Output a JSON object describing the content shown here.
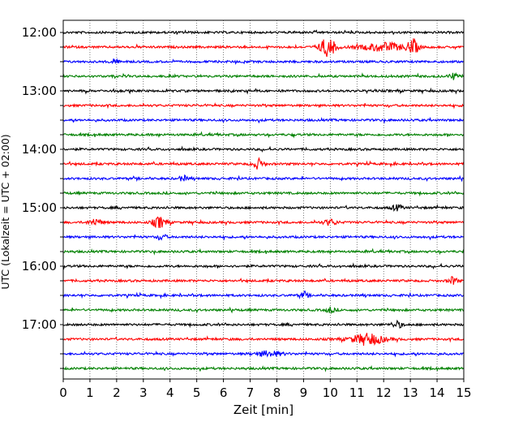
{
  "chart_data": {
    "type": "line",
    "subtype": "helicorder-seismogram",
    "title": "",
    "xlabel": "Zeit  [min]",
    "ylabel": "UTC (Lokalzeit = UTC + 02:00)",
    "xlim": [
      0,
      15
    ],
    "x_ticks": [
      "0",
      "1",
      "2",
      "3",
      "4",
      "5",
      "6",
      "7",
      "8",
      "9",
      "10",
      "11",
      "12",
      "13",
      "14",
      "15"
    ],
    "y_tick_labels": [
      "12:00",
      "13:00",
      "14:00",
      "15:00",
      "16:00",
      "17:00"
    ],
    "grid": "vertical dotted at each minute",
    "trace_interval_minutes": 15,
    "trace_color_cycle": [
      "#000000",
      "#ff0000",
      "#0000ff",
      "#008000"
    ],
    "traces": [
      {
        "start": "12:00",
        "bursts": []
      },
      {
        "start": "12:15",
        "bursts": [
          {
            "x": 9.9,
            "amp": 1.0,
            "dur": 0.6
          },
          {
            "x": 12.0,
            "amp": 0.45,
            "dur": 1.6
          },
          {
            "x": 13.1,
            "amp": 0.8,
            "dur": 0.4
          }
        ]
      },
      {
        "start": "12:30",
        "bursts": [
          {
            "x": 1.9,
            "amp": 0.3,
            "dur": 0.3
          }
        ]
      },
      {
        "start": "12:45",
        "bursts": [
          {
            "x": 14.6,
            "amp": 0.35,
            "dur": 0.3
          }
        ]
      },
      {
        "start": "13:00",
        "bursts": []
      },
      {
        "start": "13:15",
        "bursts": []
      },
      {
        "start": "13:30",
        "bursts": []
      },
      {
        "start": "13:45",
        "bursts": []
      },
      {
        "start": "14:00",
        "bursts": []
      },
      {
        "start": "14:15",
        "bursts": [
          {
            "x": 7.3,
            "amp": 0.55,
            "dur": 0.4
          }
        ]
      },
      {
        "start": "14:30",
        "bursts": [
          {
            "x": 4.5,
            "amp": 0.3,
            "dur": 0.3
          }
        ]
      },
      {
        "start": "14:45",
        "bursts": []
      },
      {
        "start": "15:00",
        "bursts": [
          {
            "x": 12.5,
            "amp": 0.3,
            "dur": 0.4
          }
        ]
      },
      {
        "start": "15:15",
        "bursts": [
          {
            "x": 1.2,
            "amp": 0.35,
            "dur": 0.5
          },
          {
            "x": 3.6,
            "amp": 0.6,
            "dur": 0.5
          },
          {
            "x": 10.0,
            "amp": 0.3,
            "dur": 0.5
          }
        ]
      },
      {
        "start": "15:30",
        "bursts": [
          {
            "x": 3.7,
            "amp": 0.35,
            "dur": 0.3
          }
        ]
      },
      {
        "start": "15:45",
        "bursts": []
      },
      {
        "start": "16:00",
        "bursts": []
      },
      {
        "start": "16:15",
        "bursts": [
          {
            "x": 14.6,
            "amp": 0.45,
            "dur": 0.3
          }
        ]
      },
      {
        "start": "16:30",
        "bursts": [
          {
            "x": 9.0,
            "amp": 0.3,
            "dur": 0.3
          }
        ]
      },
      {
        "start": "16:45",
        "bursts": [
          {
            "x": 10.0,
            "amp": 0.3,
            "dur": 0.3
          }
        ]
      },
      {
        "start": "17:00",
        "bursts": [
          {
            "x": 12.5,
            "amp": 0.35,
            "dur": 0.4
          }
        ]
      },
      {
        "start": "17:15",
        "bursts": [
          {
            "x": 11.4,
            "amp": 0.6,
            "dur": 1.2
          }
        ]
      },
      {
        "start": "17:30",
        "bursts": [
          {
            "x": 7.7,
            "amp": 0.3,
            "dur": 1.0
          }
        ]
      },
      {
        "start": "17:45",
        "bursts": []
      }
    ]
  }
}
